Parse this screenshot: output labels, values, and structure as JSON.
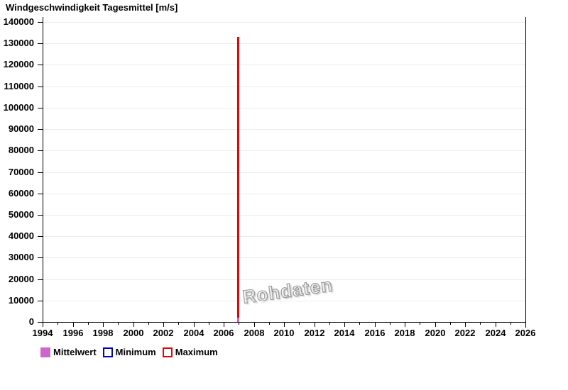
{
  "chart_data": {
    "type": "line",
    "title": "Windgeschwindigkeit Tagesmittel [m/s]",
    "watermark": "Rohdaten",
    "xlabel": "",
    "ylabel": "",
    "xlim": [
      1994,
      2026
    ],
    "ylim": [
      0,
      140000
    ],
    "x_major_ticks": [
      1994,
      1996,
      1998,
      2000,
      2002,
      2004,
      2006,
      2008,
      2010,
      2012,
      2014,
      2016,
      2018,
      2020,
      2022,
      2024,
      2026
    ],
    "x_minor_ticks": [
      1995,
      1997,
      1999,
      2001,
      2003,
      2005,
      2007,
      2009,
      2011,
      2013,
      2015,
      2017,
      2019,
      2021,
      2023,
      2025
    ],
    "y_ticks": [
      0,
      10000,
      20000,
      30000,
      40000,
      50000,
      60000,
      70000,
      80000,
      90000,
      100000,
      110000,
      120000,
      130000,
      140000
    ],
    "grid": "horizontal",
    "grid_color": "#ececec",
    "axis_color": "#000000",
    "legend_position": "bottom-left",
    "series": [
      {
        "name": "Mittelwert",
        "color": "#cc66cc",
        "swatch": "filled",
        "points": [
          {
            "x": 2007,
            "y": 2000
          }
        ]
      },
      {
        "name": "Minimum",
        "color": "#0000cc",
        "swatch": "outline",
        "points": []
      },
      {
        "name": "Maximum",
        "color": "#ee0000",
        "swatch": "outline",
        "points": [
          {
            "x": 2007,
            "y": 133000
          }
        ]
      }
    ],
    "description": "Empty time series except a single vertical spike at year 2007: Maximum ~133000, Mittelwert ~2000."
  }
}
